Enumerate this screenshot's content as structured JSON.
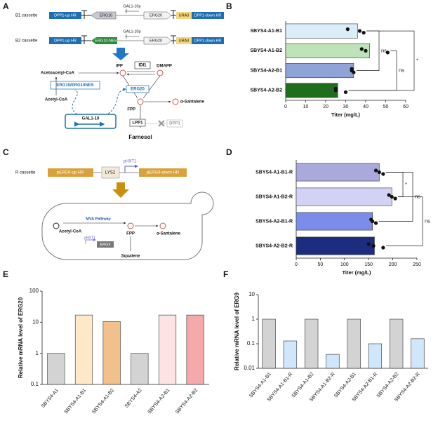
{
  "panel_labels": [
    "A",
    "B",
    "C",
    "D",
    "E",
    "F"
  ],
  "diagram_a": {
    "labels": [
      "B1 cassette",
      "DPP1-up HR",
      "ERG10",
      "GAL1-10p",
      "ERG20",
      "URA3",
      "DPP1-down HR",
      "B2 cassette",
      "DPP1-up HR",
      "ERG10-NES",
      "GAL1-10p",
      "ERG20",
      "URA3",
      "DPP1-down HR",
      "IPP",
      "IDI1",
      "DMAPP",
      "Acetoacetyl-CoA",
      "ERG10/ERG10NES",
      "ERG20",
      "Acetyl-CoA",
      "FPP",
      "α-Santalene",
      "GAL1-10",
      "LPP1",
      "DPP1",
      "Farnesol"
    ]
  },
  "diagram_c": {
    "labels": [
      "R cassette",
      "pERG9-up HR",
      "LYS2",
      "pHXT1",
      "pERG9-down HR",
      "MVA Pathway",
      "Acetyl-CoA",
      "FPP",
      "α-Santalene",
      "pHXT1",
      "ERG9",
      "Squalene"
    ]
  },
  "chart_data": [
    {
      "type": "bar",
      "orientation": "horizontal",
      "categories": [
        "SBYS4-A1-B1",
        "SBYS4-A1-B2",
        "SBYS4-A2-B1",
        "SBYS4-A2-B2"
      ],
      "values": [
        36,
        42,
        34,
        26
      ],
      "points": [
        [
          31,
          37,
          39
        ],
        [
          38,
          40,
          51
        ],
        [
          33,
          33,
          34
        ],
        [
          25,
          25,
          30
        ]
      ],
      "colors": [
        "#dcedfa",
        "#bfe3b8",
        "#8fa4d6",
        "#1e6e1e"
      ],
      "xlabel": "Titer (mg/L)",
      "xlim": [
        0,
        60
      ],
      "xticks": [
        0,
        10,
        20,
        30,
        40,
        50,
        60
      ],
      "annotations": [
        "ns",
        "ns",
        "*"
      ]
    },
    {
      "type": "bar",
      "orientation": "horizontal",
      "categories": [
        "SBYS4-A1-B1-R",
        "SBYS4-A1-B2-R",
        "SBYS4-A2-B1-R",
        "SBYS4-A2-B2-R"
      ],
      "values": [
        172,
        198,
        158,
        162
      ],
      "points": [
        [
          165,
          172,
          180
        ],
        [
          192,
          198,
          205
        ],
        [
          155,
          158,
          165
        ],
        [
          150,
          160,
          180
        ]
      ],
      "colors": [
        "#a9a9dc",
        "#d2d2f5",
        "#7b8de8",
        "#1c2c7e"
      ],
      "xlabel": "Titer (mg/L)",
      "xlim": [
        0,
        250
      ],
      "xticks": [
        0,
        50,
        100,
        150,
        200,
        250
      ],
      "annotations": [
        "*",
        "ns",
        "ns"
      ]
    },
    {
      "type": "bar",
      "log_scale": true,
      "categories": [
        "SBYS4-A1",
        "SBYS4-A1-B1",
        "SBYS4-A1-B2",
        "SBYS4-A2",
        "SBYS4-A2-B1",
        "SBYS4-A2-B2"
      ],
      "values": [
        1,
        17,
        10.5,
        1,
        17,
        17
      ],
      "colors": [
        "#d3d3d3",
        "#fde9c8",
        "#f2c08a",
        "#d3d3d3",
        "#fde3e3",
        "#f5a9a9"
      ],
      "ylabel": "Relative mRNA level of ERG20",
      "ylim": [
        0.1,
        100
      ],
      "yticks": [
        0.1,
        1,
        10,
        100
      ]
    },
    {
      "type": "bar",
      "log_scale": true,
      "categories": [
        "SBYS4-A1-B1",
        "SBYS4-A1-B1-R",
        "SBYS4-A1-B2",
        "SBYS4-A1-B2-R",
        "SBYS4-A2-B1",
        "SBYS4-A2-B1-R",
        "SBYS4-A2-B2",
        "SBYS4-A2-B2-R"
      ],
      "values": [
        1,
        0.13,
        1,
        0.037,
        1,
        0.1,
        1,
        0.16
      ],
      "colors": [
        "#d3d3d3",
        "#cfe6fb",
        "#d3d3d3",
        "#cfe6fb",
        "#d3d3d3",
        "#cfe6fb",
        "#d3d3d3",
        "#cfe6fb"
      ],
      "ylabel": "Relative mRNA level of ERG9",
      "ylim": [
        0.01,
        10
      ],
      "yticks": [
        0.01,
        0.1,
        1,
        10
      ]
    }
  ]
}
